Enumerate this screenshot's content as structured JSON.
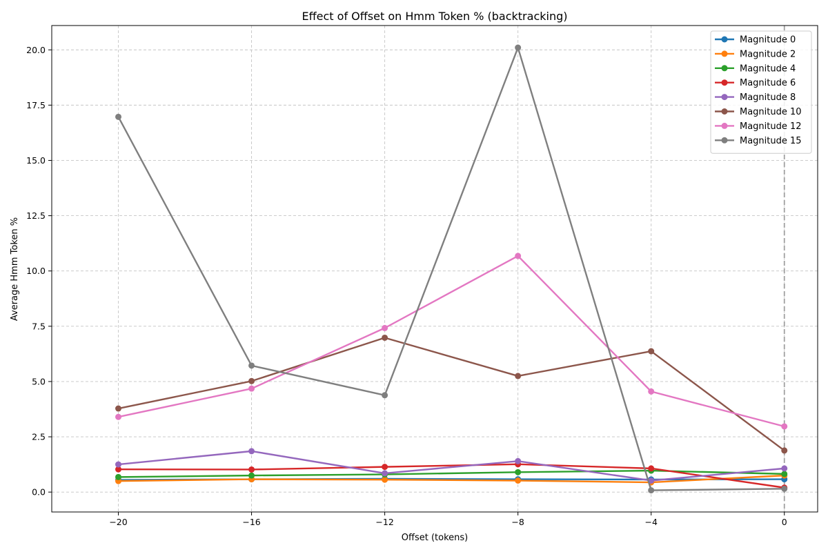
{
  "chart_data": {
    "type": "line",
    "title": "Effect of Offset on Hmm Token % (backtracking)",
    "xlabel": "Offset (tokens)",
    "ylabel": "Average Hmm Token %",
    "x": [
      -20,
      -16,
      -12,
      -8,
      -4,
      0
    ],
    "xticks": [
      -20,
      -16,
      -12,
      -8,
      -4,
      0
    ],
    "xtick_labels": [
      "−20",
      "−16",
      "−12",
      "−8",
      "−4",
      "0"
    ],
    "yticks": [
      0.0,
      2.5,
      5.0,
      7.5,
      10.0,
      12.5,
      15.0,
      17.5,
      20.0
    ],
    "ytick_labels": [
      "0.0",
      "2.5",
      "5.0",
      "7.5",
      "10.0",
      "12.5",
      "15.0",
      "17.5",
      "20.0"
    ],
    "xlim": [
      -22,
      1
    ],
    "ylim": [
      -0.9,
      21.1
    ],
    "grid": true,
    "legend_position": "top-right",
    "reference_line_x": 0,
    "series": [
      {
        "name": "Magnitude 0",
        "color": "#1f77b4",
        "values": [
          0.55,
          0.58,
          0.6,
          0.58,
          0.57,
          0.58
        ]
      },
      {
        "name": "Magnitude 2",
        "color": "#ff7f0e",
        "values": [
          0.5,
          0.58,
          0.56,
          0.52,
          0.44,
          0.75
        ]
      },
      {
        "name": "Magnitude 4",
        "color": "#2ca02c",
        "values": [
          0.68,
          0.75,
          0.8,
          0.9,
          0.97,
          0.82
        ]
      },
      {
        "name": "Magnitude 6",
        "color": "#d62728",
        "values": [
          1.03,
          1.02,
          1.14,
          1.26,
          1.07,
          0.2
        ]
      },
      {
        "name": "Magnitude 8",
        "color": "#9467bd",
        "values": [
          1.25,
          1.85,
          0.85,
          1.4,
          0.52,
          1.07
        ]
      },
      {
        "name": "Magnitude 10",
        "color": "#8c564b",
        "values": [
          3.78,
          5.02,
          6.98,
          5.25,
          6.37,
          1.88
        ]
      },
      {
        "name": "Magnitude 12",
        "color": "#e377c2",
        "values": [
          3.4,
          4.68,
          7.42,
          10.68,
          4.55,
          2.97
        ]
      },
      {
        "name": "Magnitude 15",
        "color": "#7f7f7f",
        "values": [
          16.97,
          5.72,
          4.38,
          20.1,
          0.08,
          0.15
        ]
      }
    ]
  }
}
